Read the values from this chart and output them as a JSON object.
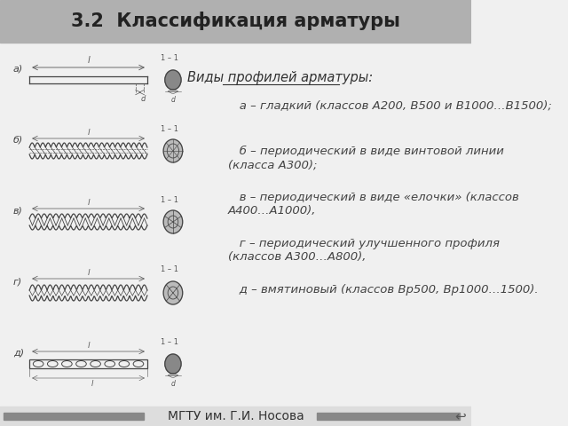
{
  "title": "3.2  Классификация арматуры",
  "title_color": "#333333",
  "title_fontsize": 15,
  "header_bg": "#b0b0b0",
  "header_text_color": "#222222",
  "footer_bg": "#888888",
  "footer_text": "МГТУ им. Г.И. Носова",
  "footer_fontsize": 10,
  "body_bg": "#f0f0f0",
  "text_block_title": "Виды профилей арматуры:",
  "text_block_title_fontsize": 10.5,
  "text_lines": [
    "   а – гладкий (классов А200, В500 и В1000…В1500);",
    "   б – периодический в виде винтовой линии\n(класса А300);",
    "   в – периодический в виде «елочки» (классов\nА400…А1000),",
    "   г – периодический улучшенного профиля\n(классов А300…А800),",
    "   д – вмятиновый (классов Вр500, Вр1000…1500)."
  ],
  "text_fontsize": 9.5,
  "left_labels": [
    "а)",
    "б)",
    "в)",
    "г)",
    "д)"
  ],
  "label_fontsize": 8,
  "line_color": "#444444",
  "dim_color": "#555555"
}
